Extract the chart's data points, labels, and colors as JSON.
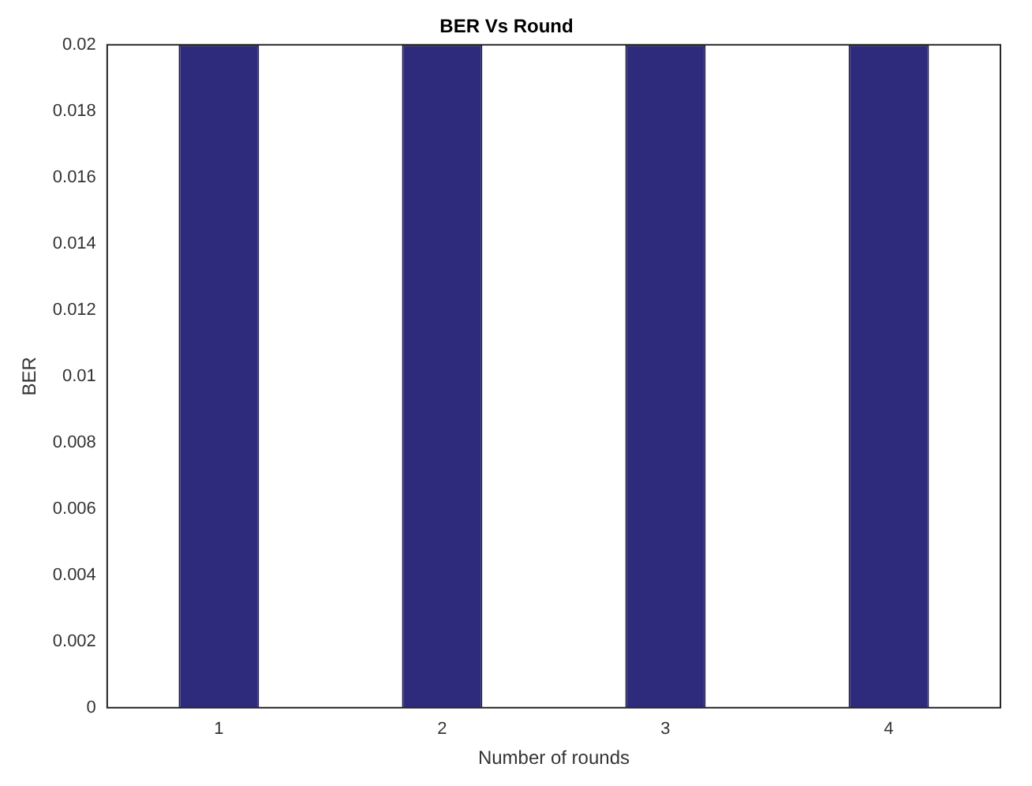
{
  "chart_data": {
    "type": "bar",
    "title": "BER Vs Round",
    "xlabel": "Number of rounds",
    "ylabel": "BER",
    "categories": [
      "1",
      "2",
      "3",
      "4"
    ],
    "values": [
      0.02,
      0.02,
      0.02,
      0.02
    ],
    "color": "#2e2a7c",
    "ylim": [
      0,
      0.02
    ],
    "yticks": [
      0,
      0.002,
      0.004,
      0.006,
      0.008,
      0.01,
      0.012,
      0.014,
      0.016,
      0.018,
      0.02
    ],
    "grid": false,
    "legend": false
  }
}
